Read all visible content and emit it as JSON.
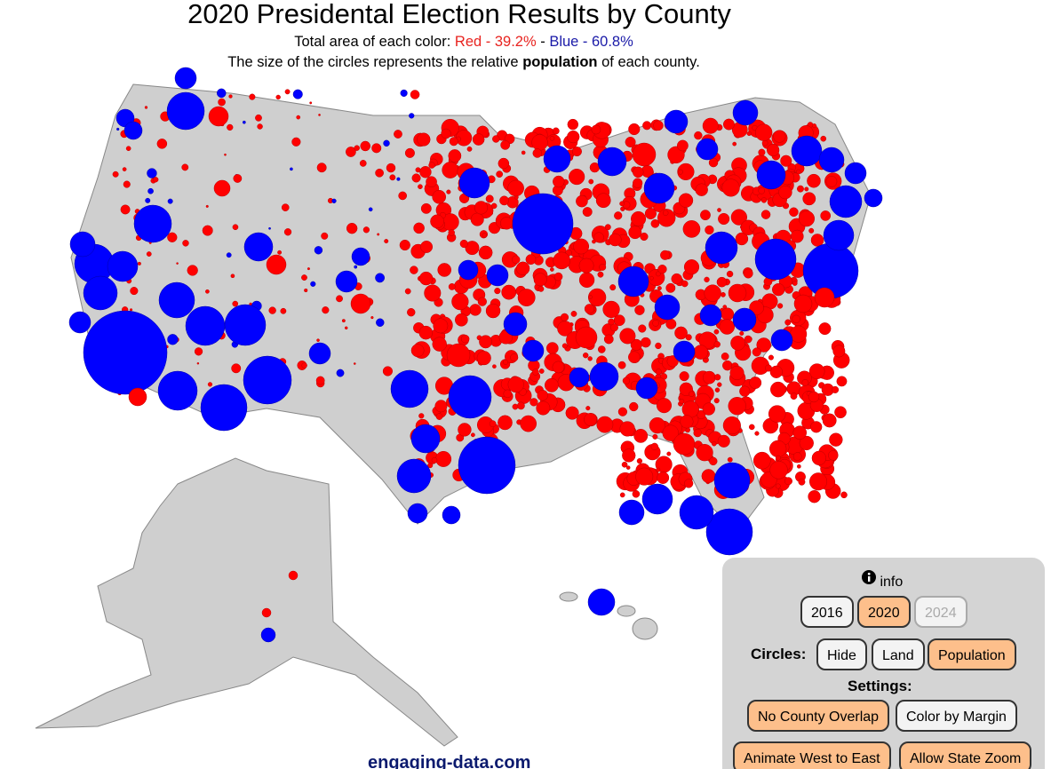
{
  "header": {
    "title": "2020 Presidental Election Results by County",
    "subtitle": {
      "lead": "Total area of each color:",
      "red": "Red - 39.2%",
      "sep": "-",
      "blue": "Blue - 60.8%"
    },
    "note": {
      "pre": "The size of the circles represents the relative",
      "bold": "population",
      "post": "of each county."
    }
  },
  "controls": {
    "info": "info",
    "years": [
      {
        "label": "2016",
        "active": false,
        "disabled": false
      },
      {
        "label": "2020",
        "active": true,
        "disabled": false
      },
      {
        "label": "2024",
        "active": false,
        "disabled": true
      }
    ],
    "circles_label": "Circles:",
    "circles": [
      {
        "label": "Hide",
        "active": false
      },
      {
        "label": "Land",
        "active": false
      },
      {
        "label": "Population",
        "active": true
      }
    ],
    "settings_label": "Settings:",
    "settings": [
      {
        "label": "No County Overlap",
        "active": true
      },
      {
        "label": "Color by Margin",
        "active": false
      },
      {
        "label": "Animate West to East",
        "active": true
      },
      {
        "label": "Allow State Zoom",
        "active": true
      }
    ]
  },
  "footer": {
    "site": "engaging-data.com"
  }
}
